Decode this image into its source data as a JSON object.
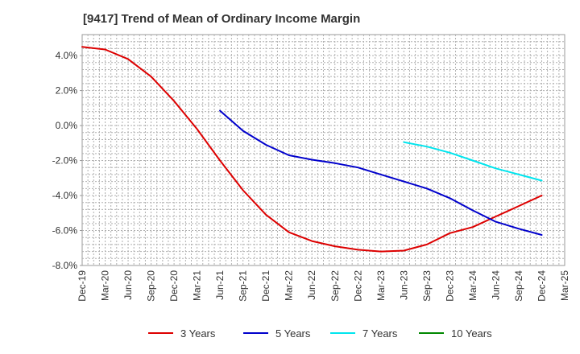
{
  "chart_data": {
    "type": "line",
    "title": "[9417]  Trend of Mean of Ordinary Income Margin",
    "xlabel": "",
    "ylabel": "",
    "x": [
      "Dec-19",
      "Mar-20",
      "Jun-20",
      "Sep-20",
      "Dec-20",
      "Mar-21",
      "Jun-21",
      "Sep-21",
      "Dec-21",
      "Mar-22",
      "Jun-22",
      "Sep-22",
      "Dec-22",
      "Mar-23",
      "Jun-23",
      "Sep-23",
      "Dec-23",
      "Mar-24",
      "Jun-24",
      "Sep-24",
      "Dec-24",
      "Mar-25"
    ],
    "yticks": [
      "4.0%",
      "2.0%",
      "0.0%",
      "-2.0%",
      "-4.0%",
      "-6.0%",
      "-8.0%"
    ],
    "ylim": [
      -8.0,
      5.2
    ],
    "grid": true,
    "legend_position": "bottom",
    "series": [
      {
        "name": "3 Years",
        "color": "#dd0000",
        "values": [
          4.5,
          4.35,
          3.8,
          2.8,
          1.4,
          -0.2,
          -2.0,
          -3.7,
          -5.1,
          -6.1,
          -6.6,
          -6.9,
          -7.1,
          -7.2,
          -7.15,
          -6.8,
          -6.15,
          -5.8,
          -5.2,
          -4.6,
          -4.0,
          null
        ]
      },
      {
        "name": "5 Years",
        "color": "#0000cc",
        "values": [
          null,
          null,
          null,
          null,
          null,
          null,
          0.85,
          -0.3,
          -1.1,
          -1.7,
          -1.95,
          -2.15,
          -2.4,
          -2.8,
          -3.2,
          -3.6,
          -4.15,
          -4.85,
          -5.5,
          -5.9,
          -6.25,
          null
        ]
      },
      {
        "name": "7 Years",
        "color": "#00e5ee",
        "values": [
          null,
          null,
          null,
          null,
          null,
          null,
          null,
          null,
          null,
          null,
          null,
          null,
          null,
          null,
          -0.95,
          -1.2,
          -1.55,
          -2.0,
          -2.45,
          -2.8,
          -3.15,
          null
        ]
      },
      {
        "name": "10 Years",
        "color": "#008800",
        "values": [
          null,
          null,
          null,
          null,
          null,
          null,
          null,
          null,
          null,
          null,
          null,
          null,
          null,
          null,
          null,
          null,
          null,
          null,
          null,
          null,
          null,
          null
        ]
      }
    ]
  }
}
